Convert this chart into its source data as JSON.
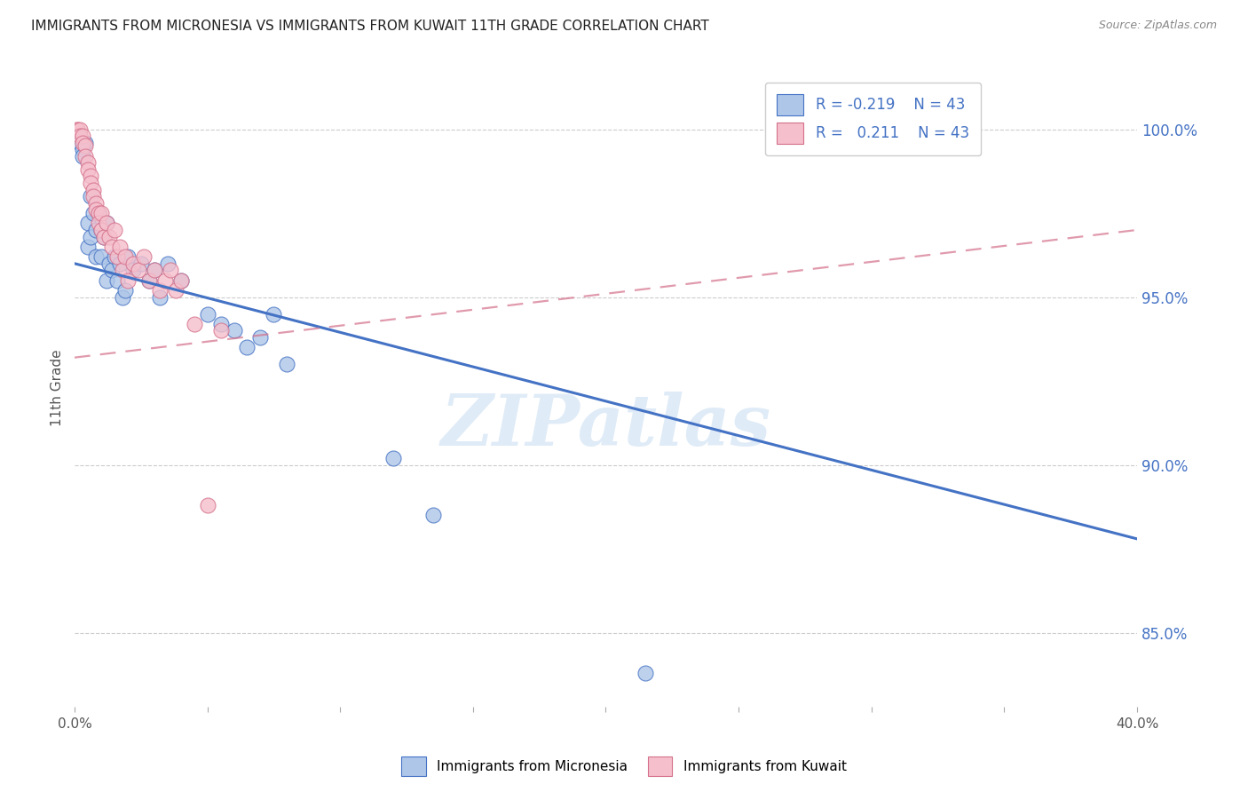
{
  "title": "IMMIGRANTS FROM MICRONESIA VS IMMIGRANTS FROM KUWAIT 11TH GRADE CORRELATION CHART",
  "source": "Source: ZipAtlas.com",
  "ylabel": "11th Grade",
  "ytick_labels": [
    "100.0%",
    "95.0%",
    "90.0%",
    "85.0%"
  ],
  "ytick_values": [
    1.0,
    0.95,
    0.9,
    0.85
  ],
  "xlim": [
    0.0,
    0.4
  ],
  "ylim": [
    0.828,
    1.018
  ],
  "legend_blue_label": "Immigrants from Micronesia",
  "legend_pink_label": "Immigrants from Kuwait",
  "legend_R_blue": "R = -0.219",
  "legend_N_blue": "N = 43",
  "legend_R_pink": "R =   0.211",
  "legend_N_pink": "N = 43",
  "blue_scatter_x": [
    0.001,
    0.002,
    0.003,
    0.003,
    0.004,
    0.005,
    0.005,
    0.006,
    0.006,
    0.007,
    0.008,
    0.008,
    0.009,
    0.01,
    0.01,
    0.011,
    0.012,
    0.012,
    0.013,
    0.014,
    0.015,
    0.016,
    0.017,
    0.018,
    0.019,
    0.02,
    0.022,
    0.025,
    0.028,
    0.03,
    0.032,
    0.035,
    0.04,
    0.05,
    0.055,
    0.06,
    0.065,
    0.07,
    0.075,
    0.08,
    0.12,
    0.135,
    0.215
  ],
  "blue_scatter_y": [
    0.998,
    0.996,
    0.994,
    0.992,
    0.996,
    0.972,
    0.965,
    0.98,
    0.968,
    0.975,
    0.97,
    0.962,
    0.975,
    0.97,
    0.962,
    0.968,
    0.972,
    0.955,
    0.96,
    0.958,
    0.962,
    0.955,
    0.96,
    0.95,
    0.952,
    0.962,
    0.958,
    0.96,
    0.955,
    0.958,
    0.95,
    0.96,
    0.955,
    0.945,
    0.942,
    0.94,
    0.935,
    0.938,
    0.945,
    0.93,
    0.902,
    0.885,
    0.838
  ],
  "pink_scatter_x": [
    0.001,
    0.001,
    0.002,
    0.002,
    0.003,
    0.003,
    0.004,
    0.004,
    0.005,
    0.005,
    0.006,
    0.006,
    0.007,
    0.007,
    0.008,
    0.008,
    0.009,
    0.009,
    0.01,
    0.01,
    0.011,
    0.012,
    0.013,
    0.014,
    0.015,
    0.016,
    0.017,
    0.018,
    0.019,
    0.02,
    0.022,
    0.024,
    0.026,
    0.028,
    0.03,
    0.032,
    0.034,
    0.036,
    0.038,
    0.04,
    0.045,
    0.05,
    0.055
  ],
  "pink_scatter_y": [
    1.0,
    1.0,
    1.0,
    0.998,
    0.998,
    0.996,
    0.995,
    0.992,
    0.99,
    0.988,
    0.986,
    0.984,
    0.982,
    0.98,
    0.978,
    0.976,
    0.975,
    0.972,
    0.975,
    0.97,
    0.968,
    0.972,
    0.968,
    0.965,
    0.97,
    0.962,
    0.965,
    0.958,
    0.962,
    0.955,
    0.96,
    0.958,
    0.962,
    0.955,
    0.958,
    0.952,
    0.955,
    0.958,
    0.952,
    0.955,
    0.942,
    0.888,
    0.94
  ],
  "blue_line_x": [
    0.0,
    0.4
  ],
  "blue_line_y": [
    0.96,
    0.878
  ],
  "pink_line_x": [
    0.0,
    0.4
  ],
  "pink_line_y": [
    0.932,
    0.97
  ],
  "blue_color": "#aec6e8",
  "pink_color": "#f5bfcc",
  "blue_line_color": "#4472c4",
  "pink_line_color": "#d4708a",
  "watermark": "ZIPatlas",
  "background_color": "#ffffff",
  "grid_color": "#cccccc"
}
